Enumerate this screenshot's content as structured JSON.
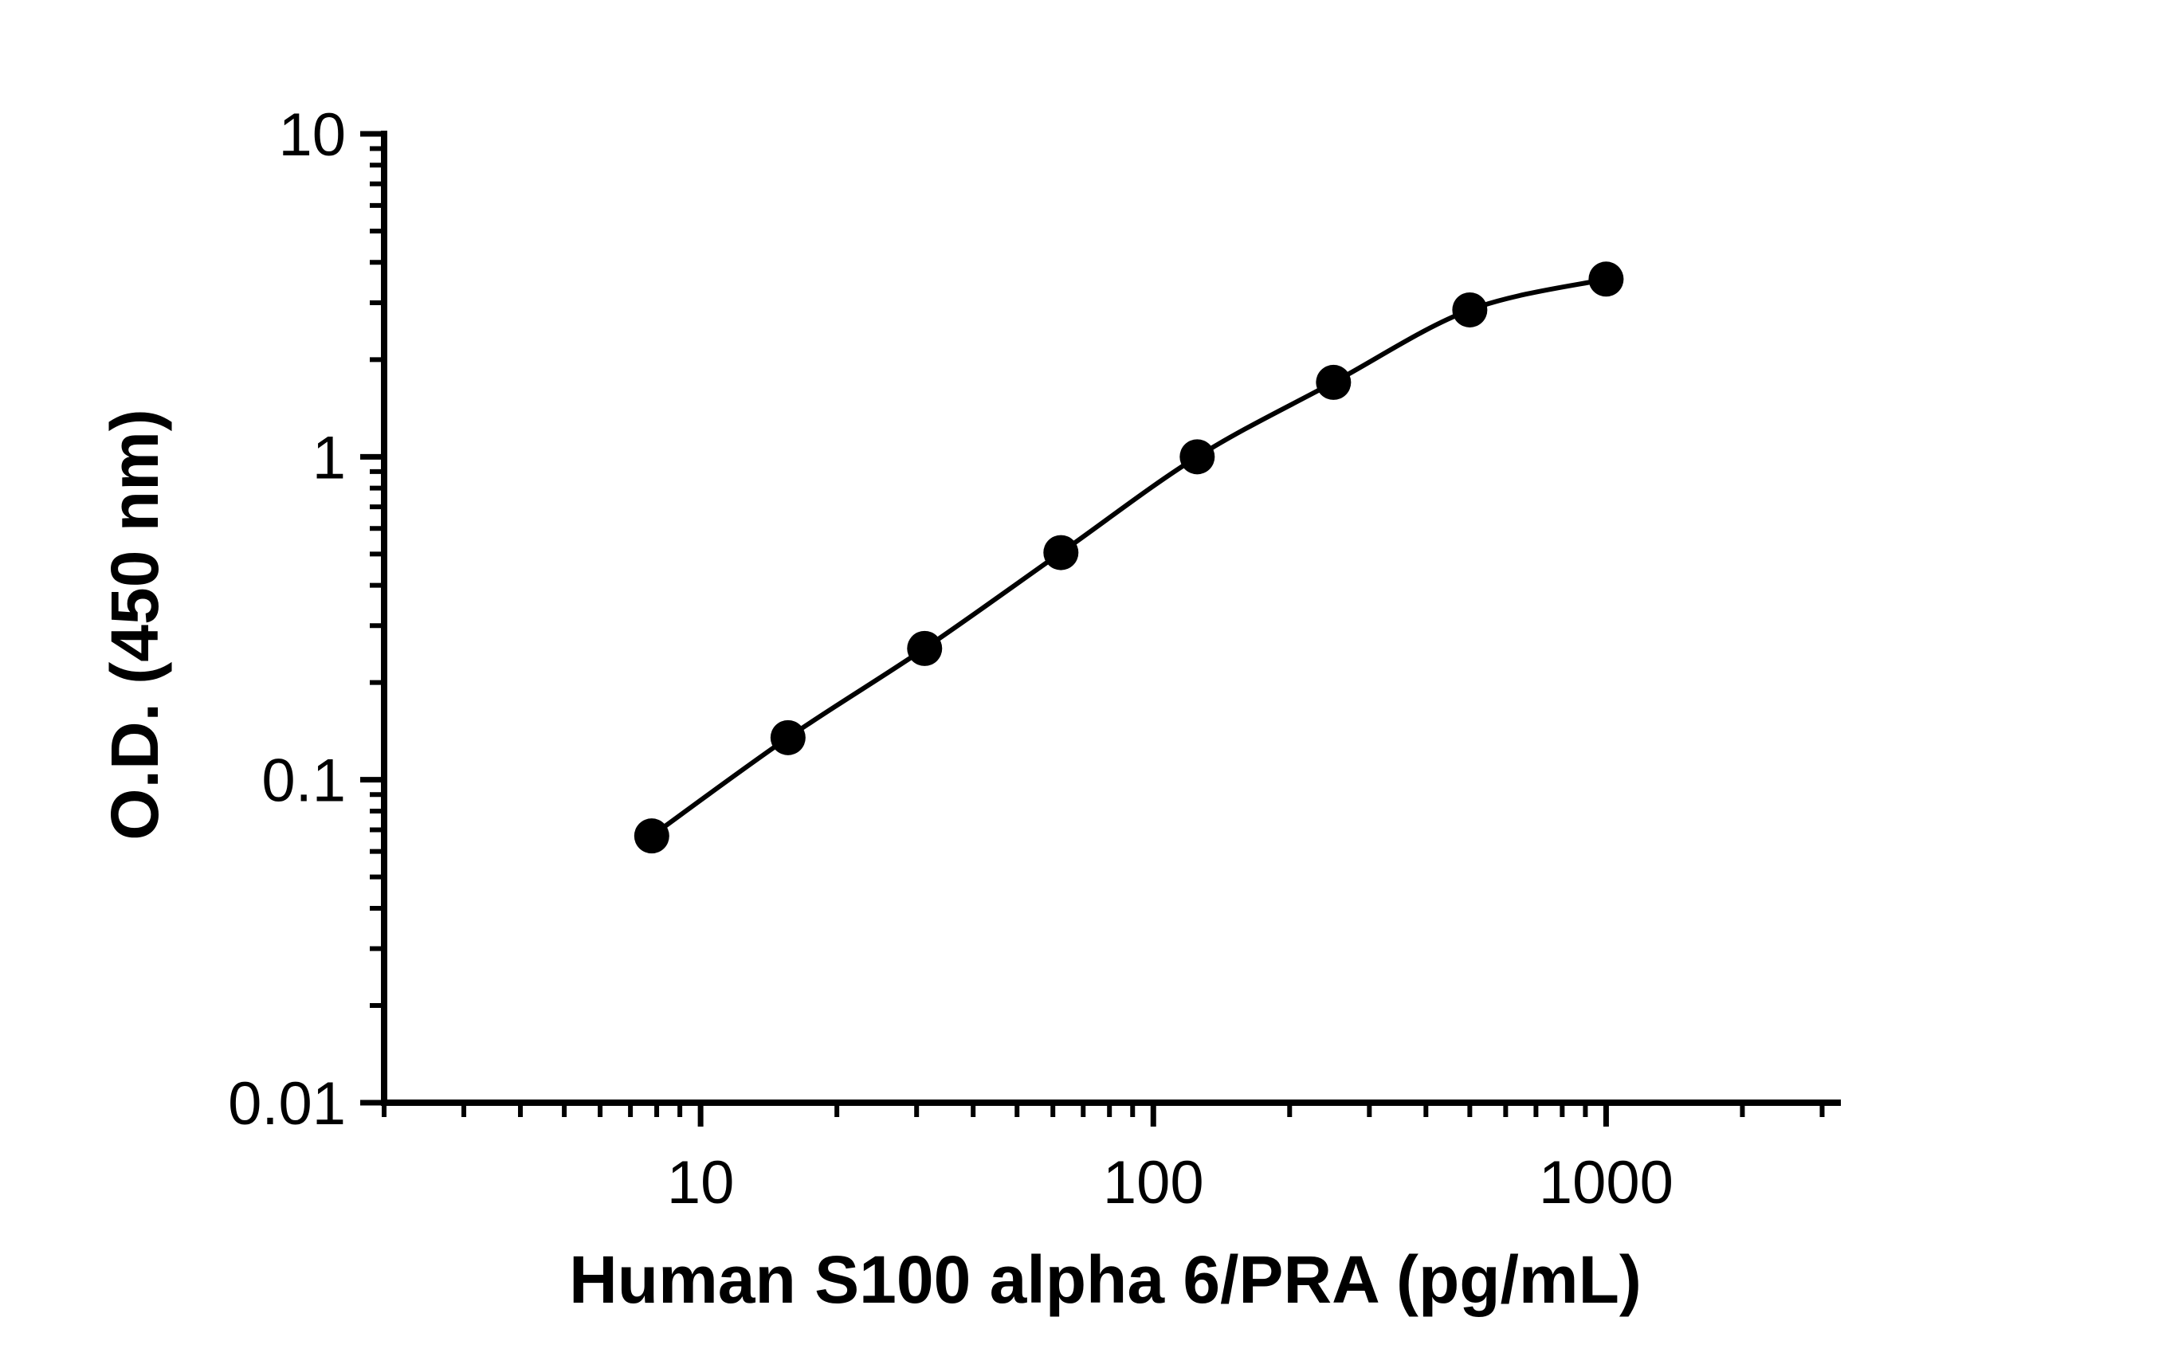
{
  "chart_data": {
    "type": "scatter",
    "xlabel": "Human S100 alpha 6/PRA (pg/mL)",
    "ylabel": "O.D. (450 nm)",
    "x_scale": "log",
    "y_scale": "log",
    "xlim": [
      2,
      3300
    ],
    "ylim": [
      0.01,
      10
    ],
    "x_ticks": [
      {
        "value": 10,
        "label": "10"
      },
      {
        "value": 100,
        "label": "100"
      },
      {
        "value": 1000,
        "label": "1000"
      }
    ],
    "y_ticks": [
      {
        "value": 0.01,
        "label": "0.01"
      },
      {
        "value": 0.1,
        "label": "0.1"
      },
      {
        "value": 1,
        "label": "1"
      },
      {
        "value": 10,
        "label": "10"
      }
    ],
    "grid": false,
    "legend": "none",
    "series": [
      {
        "x": [
          7.8,
          15.6,
          31.25,
          62.5,
          125,
          250,
          500,
          1000
        ],
        "y": [
          0.067,
          0.135,
          0.255,
          0.505,
          1.0,
          1.7,
          2.85,
          3.55
        ],
        "marker": "filled-circle",
        "fit_line": true
      }
    ],
    "colors": {
      "marks": "#000000",
      "background": "#ffffff"
    }
  }
}
